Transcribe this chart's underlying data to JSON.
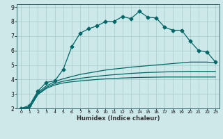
{
  "title": "",
  "xlabel": "Humidex (Indice chaleur)",
  "ylabel": "",
  "bg_color": "#cce8e8",
  "line_color": "#006666",
  "grid_color": "#aacccc",
  "xlim": [
    -0.5,
    23.5
  ],
  "ylim": [
    2,
    9.2
  ],
  "yticks": [
    2,
    3,
    4,
    5,
    6,
    7,
    8,
    9
  ],
  "xticks": [
    0,
    1,
    2,
    3,
    4,
    5,
    6,
    7,
    8,
    9,
    10,
    11,
    12,
    13,
    14,
    15,
    16,
    17,
    18,
    19,
    20,
    21,
    22,
    23
  ],
  "series": [
    {
      "x": [
        0,
        1,
        2,
        3,
        4,
        5,
        6,
        7,
        8,
        9,
        10,
        11,
        12,
        13,
        14,
        15,
        16,
        17,
        18,
        19,
        20,
        21,
        22,
        23
      ],
      "y": [
        2.0,
        2.2,
        3.2,
        3.8,
        3.9,
        4.7,
        6.25,
        7.2,
        7.5,
        7.7,
        8.0,
        8.0,
        8.35,
        8.2,
        8.7,
        8.3,
        8.25,
        7.6,
        7.4,
        7.4,
        6.65,
        6.0,
        5.9,
        5.2
      ],
      "marker": "D",
      "markersize": 2.5,
      "linewidth": 0.9
    },
    {
      "x": [
        0,
        1,
        2,
        3,
        4,
        5,
        6,
        7,
        8,
        9,
        10,
        11,
        12,
        13,
        14,
        15,
        16,
        17,
        18,
        19,
        20,
        21,
        22,
        23
      ],
      "y": [
        2.0,
        2.1,
        3.1,
        3.55,
        3.85,
        4.05,
        4.2,
        4.35,
        4.45,
        4.55,
        4.65,
        4.72,
        4.78,
        4.85,
        4.9,
        4.95,
        5.0,
        5.05,
        5.1,
        5.15,
        5.2,
        5.2,
        5.2,
        5.15
      ],
      "marker": null,
      "markersize": 0,
      "linewidth": 0.9
    },
    {
      "x": [
        0,
        1,
        2,
        3,
        4,
        5,
        6,
        7,
        8,
        9,
        10,
        11,
        12,
        13,
        14,
        15,
        16,
        17,
        18,
        19,
        20,
        21,
        22,
        23
      ],
      "y": [
        2.0,
        2.05,
        3.0,
        3.45,
        3.72,
        3.88,
        3.98,
        4.08,
        4.15,
        4.22,
        4.28,
        4.33,
        4.37,
        4.42,
        4.45,
        4.48,
        4.5,
        4.52,
        4.54,
        4.55,
        4.56,
        4.56,
        4.56,
        4.56
      ],
      "marker": null,
      "markersize": 0,
      "linewidth": 0.9
    },
    {
      "x": [
        0,
        1,
        2,
        3,
        4,
        5,
        6,
        7,
        8,
        9,
        10,
        11,
        12,
        13,
        14,
        15,
        16,
        17,
        18,
        19,
        20,
        21,
        22,
        23
      ],
      "y": [
        2.0,
        2.0,
        2.95,
        3.38,
        3.62,
        3.76,
        3.84,
        3.9,
        3.95,
        4.0,
        4.04,
        4.07,
        4.1,
        4.12,
        4.14,
        4.15,
        4.16,
        4.17,
        4.17,
        4.17,
        4.17,
        4.17,
        4.17,
        4.17
      ],
      "marker": null,
      "markersize": 0,
      "linewidth": 0.9
    }
  ]
}
